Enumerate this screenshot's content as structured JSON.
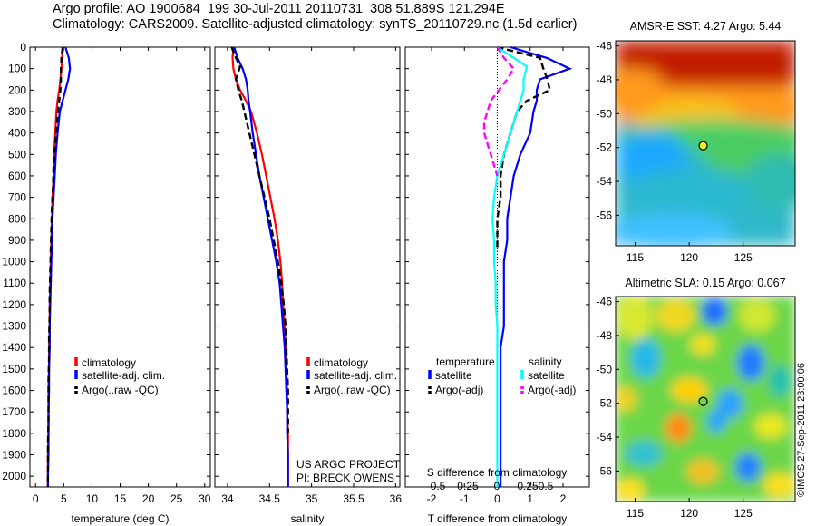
{
  "header": {
    "line1": "Argo profile: AO 1900684_199 30-Jul-2011 20110731_308 51.889S 121.294E",
    "line2": "Climatology: CARS2009. Satellite-adjusted climatology: synTS_20110729.nc (1.5d earlier)"
  },
  "colors": {
    "climatology": "#ff0000",
    "satellite": "#0000ff",
    "argo": "#000000",
    "argo_salinity": "#ff00ff",
    "satellite_salinity": "#00ffff"
  },
  "legend": {
    "climatology": "climatology",
    "satellite_adj": "satellite-adj. clim.",
    "argo_raw": "Argo(..raw -QC)",
    "temperature": "temperature",
    "salinity": "salinity",
    "satellite": "satellite",
    "argo_adj": "Argo(-adj)"
  },
  "credits": {
    "project": "US ARGO PROJECT",
    "pi": "PI: BRECK OWENS",
    "imos": "©IMOS 27-Sep-2011 23:00:06"
  },
  "chart_data": [
    {
      "type": "line",
      "xlabel": "temperature (deg C)",
      "ylabel": "",
      "xlim": [
        -1,
        31
      ],
      "ylim": [
        2050,
        0
      ],
      "xticks": [
        "0",
        "5",
        "10",
        "15",
        "20",
        "25",
        "30"
      ],
      "yticks": [
        "0",
        "100",
        "200",
        "300",
        "400",
        "500",
        "600",
        "700",
        "800",
        "900",
        "1000",
        "1100",
        "1200",
        "1300",
        "1400",
        "1500",
        "1600",
        "1700",
        "1800",
        "1900",
        "2000"
      ],
      "legend_position": "lower-right",
      "series": [
        {
          "name": "climatology",
          "color": "#ff0000",
          "x": [
            4.9,
            4.7,
            4.6,
            4.4,
            4.2,
            3.9,
            3.7,
            3.5,
            3.3,
            3.2,
            3.0,
            2.9,
            2.8,
            2.7,
            2.6,
            2.5,
            2.5,
            2.4,
            2.4,
            2.3,
            2.3,
            2.3,
            2.2,
            2.2,
            2.2
          ],
          "y": [
            0,
            50,
            100,
            150,
            200,
            250,
            300,
            400,
            500,
            600,
            700,
            800,
            900,
            1000,
            1100,
            1200,
            1300,
            1400,
            1500,
            1600,
            1700,
            1800,
            1900,
            2000,
            2050
          ]
        },
        {
          "name": "satellite-adj. clim.",
          "color": "#0000ff",
          "x": [
            5.3,
            5.9,
            6.1,
            5.8,
            5.3,
            4.8,
            4.3,
            3.9,
            3.6,
            3.4,
            3.2,
            3.0,
            2.9,
            2.8,
            2.7,
            2.6,
            2.5,
            2.5,
            2.4,
            2.4,
            2.3,
            2.3,
            2.3,
            2.2,
            2.2
          ],
          "y": [
            0,
            50,
            100,
            150,
            200,
            250,
            300,
            400,
            500,
            600,
            700,
            800,
            900,
            1000,
            1100,
            1200,
            1300,
            1400,
            1500,
            1600,
            1700,
            1800,
            1900,
            2000,
            2050
          ]
        },
        {
          "name": "Argo(..raw -QC)",
          "color": "#000000",
          "dash": true,
          "x": [
            4.8,
            4.6,
            4.5,
            4.5,
            4.4,
            4.2,
            3.8,
            3.5,
            3.2,
            3.1,
            2.9,
            2.8,
            2.7,
            2.6,
            2.5,
            2.5,
            2.4,
            2.4,
            2.3,
            2.3,
            2.3,
            2.2,
            2.2,
            2.2
          ],
          "y": [
            0,
            50,
            100,
            150,
            200,
            250,
            350,
            450,
            550,
            650,
            750,
            850,
            950,
            1050,
            1150,
            1250,
            1350,
            1450,
            1550,
            1650,
            1750,
            1850,
            1950,
            2050
          ]
        }
      ]
    },
    {
      "type": "line",
      "xlabel": "salinity",
      "xlim": [
        33.85,
        36.05
      ],
      "ylim": [
        2050,
        0
      ],
      "xticks": [
        "34",
        "34.5",
        "35",
        "35.5",
        "36"
      ],
      "legend_position": "lower-right",
      "series": [
        {
          "name": "climatology",
          "color": "#ff0000",
          "x": [
            34.07,
            34.06,
            34.07,
            34.1,
            34.15,
            34.22,
            34.28,
            34.35,
            34.41,
            34.46,
            34.51,
            34.56,
            34.6,
            34.63,
            34.65,
            34.66,
            34.68,
            34.69,
            34.7,
            34.71,
            34.71,
            34.72,
            34.72,
            34.72,
            34.72
          ],
          "y": [
            0,
            50,
            100,
            150,
            200,
            250,
            300,
            400,
            500,
            600,
            700,
            800,
            900,
            1000,
            1100,
            1200,
            1300,
            1400,
            1500,
            1600,
            1700,
            1800,
            1900,
            2000,
            2050
          ]
        },
        {
          "name": "satellite-adj. clim.",
          "color": "#0000ff",
          "x": [
            34.08,
            34.12,
            34.18,
            34.22,
            34.24,
            34.25,
            34.27,
            34.3,
            34.34,
            34.38,
            34.43,
            34.48,
            34.53,
            34.58,
            34.62,
            34.64,
            34.66,
            34.68,
            34.69,
            34.7,
            34.71,
            34.71,
            34.72,
            34.72,
            34.72
          ],
          "y": [
            0,
            50,
            100,
            150,
            200,
            250,
            300,
            400,
            500,
            600,
            700,
            800,
            900,
            1000,
            1100,
            1200,
            1300,
            1400,
            1500,
            1600,
            1700,
            1800,
            1900,
            2000,
            2050
          ]
        },
        {
          "name": "Argo(..raw -QC)",
          "color": "#000000",
          "dash": true,
          "x": [
            34.05,
            34.1,
            34.15,
            34.1,
            34.13,
            34.17,
            34.2,
            34.26,
            34.32,
            34.38,
            34.44,
            34.5,
            34.55,
            34.6,
            34.64,
            34.67,
            34.69,
            34.7,
            34.71,
            34.72,
            34.72,
            34.72
          ],
          "y": [
            0,
            50,
            90,
            150,
            200,
            250,
            300,
            400,
            500,
            600,
            700,
            800,
            900,
            1000,
            1100,
            1200,
            1300,
            1400,
            1500,
            1600,
            1700,
            1800
          ]
        }
      ]
    },
    {
      "type": "line",
      "xlabel": "T difference from climatology",
      "xlabel_top": "S difference from climatology",
      "xlim": [
        -2.8,
        2.8
      ],
      "ylim": [
        2050,
        0
      ],
      "xticks": [
        "-2",
        "-1",
        "0",
        "1",
        "2"
      ],
      "xticks_top": [
        "-0.5",
        "-0.25",
        "0",
        "0.25",
        "0.5"
      ],
      "legend_position": "lower-center",
      "series": [
        {
          "name": "satellite",
          "group": "temperature",
          "color": "#0000ff",
          "x": [
            0.4,
            1.5,
            2.2,
            1.3,
            1.2,
            1.2,
            1.1,
            1.0,
            0.7,
            0.5,
            0.4,
            0.3,
            0.3,
            0.2,
            0.2,
            0.2,
            0.2,
            0.1,
            0.1,
            0.1,
            0.1,
            0.1,
            0.1,
            0.1,
            0.1
          ],
          "y": [
            0,
            50,
            100,
            150,
            200,
            250,
            300,
            400,
            500,
            600,
            700,
            800,
            900,
            1000,
            1100,
            1200,
            1300,
            1400,
            1500,
            1600,
            1700,
            1800,
            1900,
            2000,
            2050
          ]
        },
        {
          "name": "Argo(-adj)",
          "group": "temperature",
          "color": "#000000",
          "dash": true,
          "x": [
            0,
            1.3,
            1.4,
            1.5,
            1.6,
            0.9,
            0.6,
            0.4,
            0.2,
            0.1,
            0.1,
            0.0,
            0.0,
            0.0
          ],
          "y": [
            0,
            50,
            100,
            140,
            200,
            250,
            300,
            400,
            500,
            600,
            700,
            800,
            900,
            950
          ]
        },
        {
          "name": "satellite",
          "group": "salinity",
          "color": "#00ffff",
          "x": [
            0.0,
            0.5,
            0.9,
            0.8,
            0.8,
            0.7,
            0.6,
            0.4,
            0.2,
            0.0,
            -0.1,
            -0.15,
            -0.1,
            -0.1,
            -0.05,
            -0.05,
            0.0,
            0.0,
            0.0,
            0.0,
            0.0,
            0.0
          ],
          "y": [
            0,
            50,
            90,
            150,
            200,
            250,
            300,
            400,
            500,
            600,
            700,
            800,
            900,
            1000,
            1100,
            1200,
            1300,
            1400,
            1500,
            1600,
            1800,
            2050
          ]
        },
        {
          "name": "Argo(-adj)",
          "group": "salinity",
          "color": "#ff00ff",
          "dash": true,
          "x": [
            0.0,
            0.2,
            0.5,
            0.3,
            -0.2,
            -0.4,
            -0.4,
            -0.2,
            -0.1,
            0.0
          ],
          "y": [
            0,
            50,
            100,
            150,
            250,
            350,
            400,
            500,
            550,
            600
          ]
        }
      ]
    },
    {
      "type": "heatmap",
      "title": "AMSR-E SST: 4.27 Argo: 5.44",
      "xticks": [
        "115",
        "120",
        "125"
      ],
      "yticks": [
        "-46",
        "-48",
        "-50",
        "-52",
        "-54",
        "-56"
      ],
      "xlim": [
        113.2,
        129.8
      ],
      "ylim": [
        -57.8,
        -45.7
      ],
      "marker": {
        "lon": 121.294,
        "lat": -51.889
      }
    },
    {
      "type": "heatmap",
      "title": "Altimetric SLA: 0.15 Argo: 0.067",
      "xticks": [
        "115",
        "120",
        "125"
      ],
      "yticks": [
        "-46",
        "-48",
        "-50",
        "-52",
        "-54",
        "-56"
      ],
      "xlim": [
        113.2,
        129.8
      ],
      "ylim": [
        -57.8,
        -45.7
      ],
      "marker": {
        "lon": 121.294,
        "lat": -51.889
      }
    }
  ]
}
